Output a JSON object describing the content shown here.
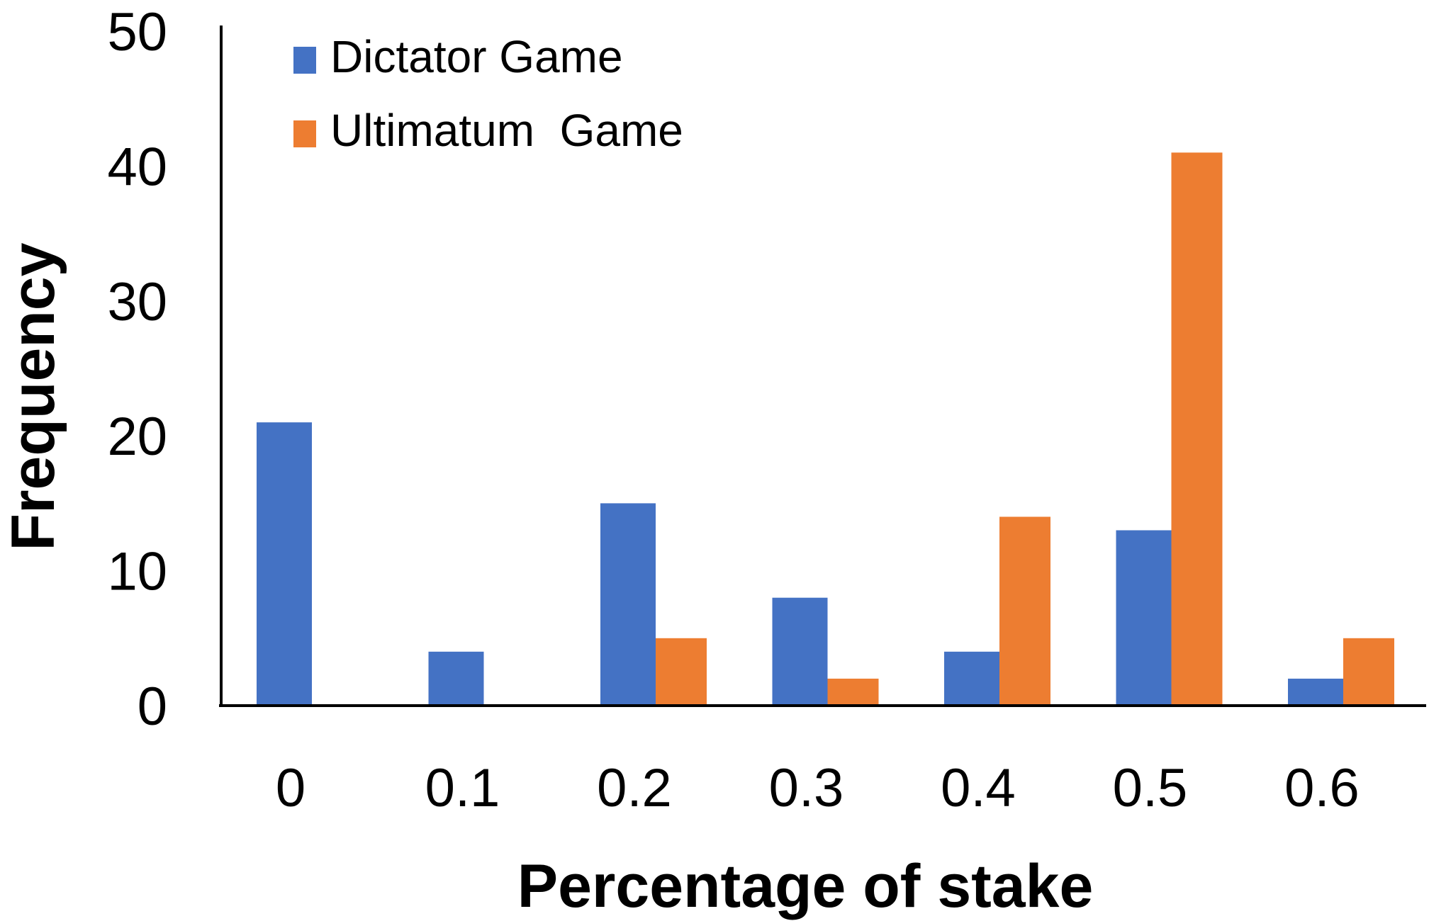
{
  "chart_data": {
    "type": "bar",
    "categories": [
      "0",
      "0.1",
      "0.2",
      "0.3",
      "0.4",
      "0.5",
      "0.6"
    ],
    "series": [
      {
        "name": "Dictator Game",
        "color": "#4472C4",
        "values": [
          21,
          4,
          15,
          8,
          4,
          13,
          2
        ]
      },
      {
        "name": "Ultimatum  Game",
        "color": "#ED7D31",
        "values": [
          0,
          0,
          5,
          2,
          14,
          41,
          5
        ]
      }
    ],
    "xlabel": "Percentage of stake",
    "ylabel": "Frequency",
    "yticks": [
      "0",
      "10",
      "20",
      "30",
      "40",
      "50"
    ],
    "ylim": [
      0,
      50
    ],
    "grid": false,
    "legend_position": "top-left"
  }
}
